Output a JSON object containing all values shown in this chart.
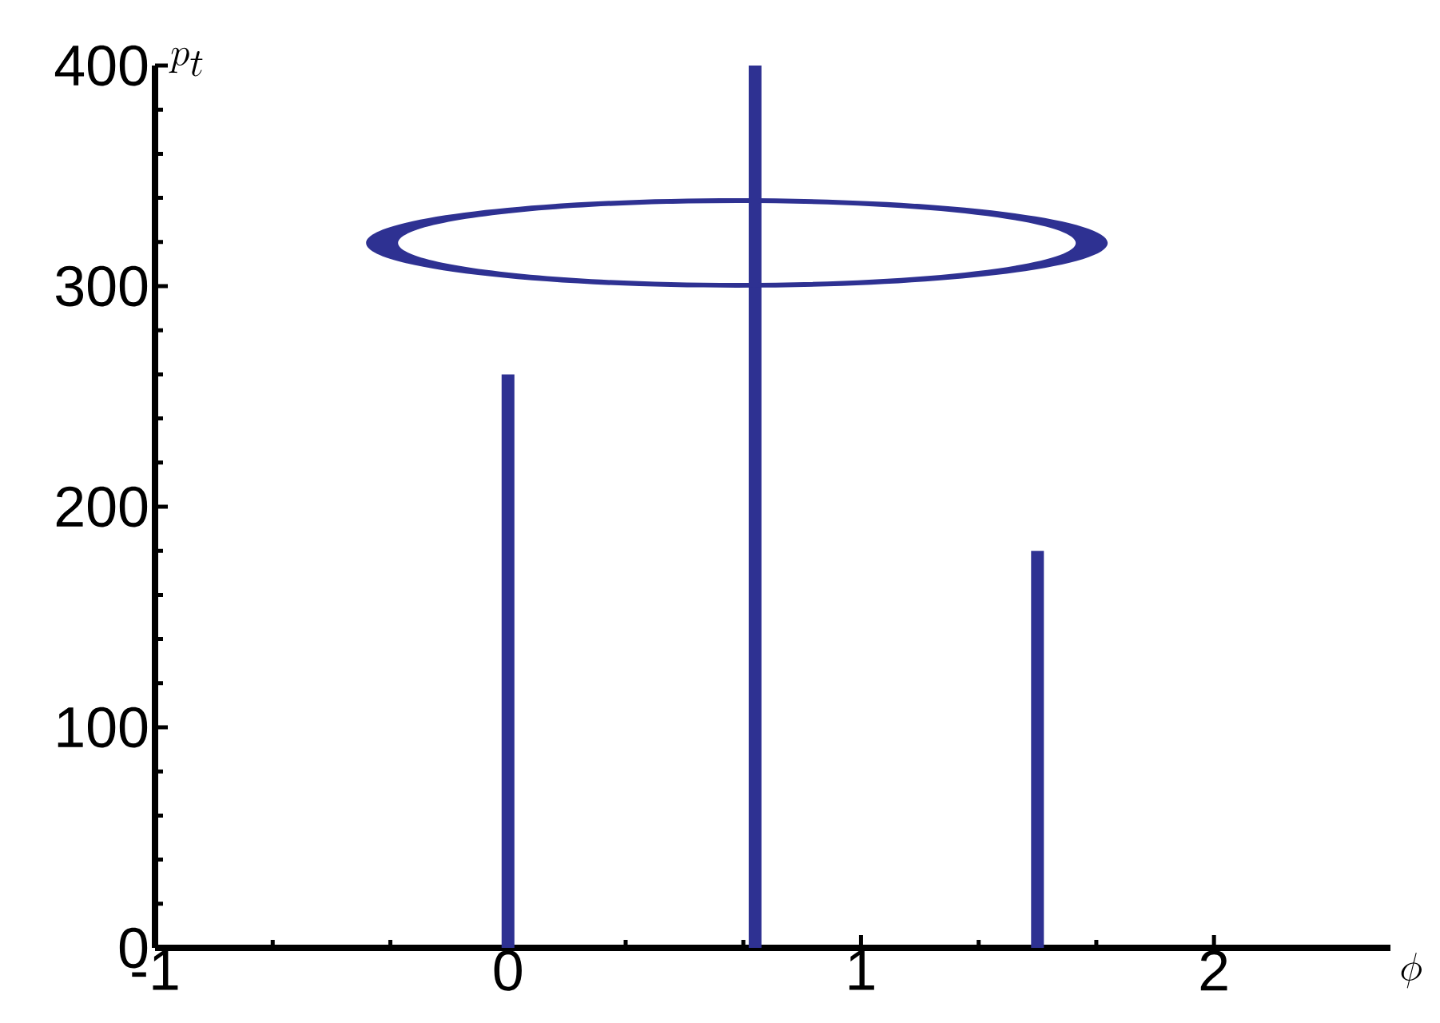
{
  "chart_data": {
    "type": "bar",
    "xlabel": "\\phi",
    "ylabel": "p_t",
    "x": [
      0,
      0.7,
      1.5
    ],
    "values": [
      260,
      400,
      180
    ],
    "color": "#2e3192",
    "xlim": [
      -1,
      2.5
    ],
    "xticks": [
      -1,
      0,
      1,
      2
    ],
    "ylim": [
      0,
      400
    ],
    "yticks": [
      0,
      100,
      200,
      300,
      400
    ],
    "grid": false
  }
}
